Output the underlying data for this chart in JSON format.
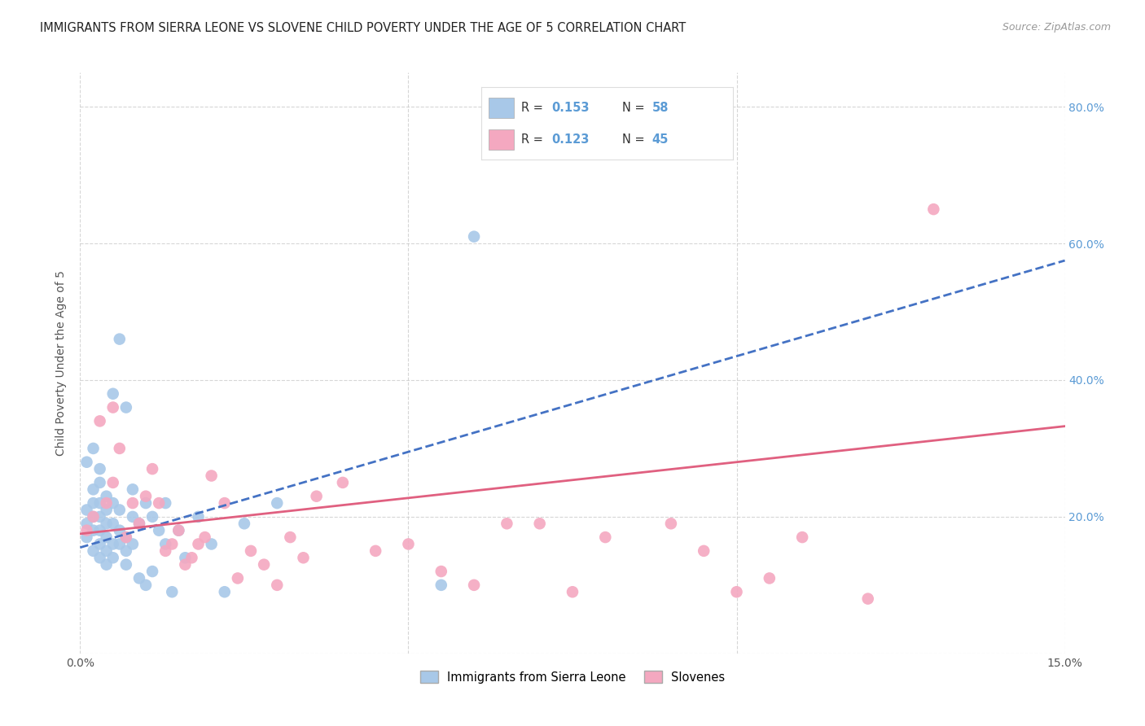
{
  "title": "IMMIGRANTS FROM SIERRA LEONE VS SLOVENE CHILD POVERTY UNDER THE AGE OF 5 CORRELATION CHART",
  "source": "Source: ZipAtlas.com",
  "ylabel": "Child Poverty Under the Age of 5",
  "xlim": [
    0.0,
    0.15
  ],
  "ylim": [
    0.0,
    0.85
  ],
  "legend_label1": "Immigrants from Sierra Leone",
  "legend_label2": "Slovenes",
  "R1": 0.153,
  "N1": 58,
  "R2": 0.123,
  "N2": 45,
  "color1": "#a8c8e8",
  "color2": "#f4a8c0",
  "trendline1_color": "#4472c4",
  "trendline2_color": "#e06080",
  "background_color": "#ffffff",
  "grid_color": "#cccccc",
  "right_tick_color": "#5b9bd5",
  "scatter1_x": [
    0.001,
    0.001,
    0.001,
    0.001,
    0.002,
    0.002,
    0.002,
    0.002,
    0.002,
    0.002,
    0.003,
    0.003,
    0.003,
    0.003,
    0.003,
    0.003,
    0.003,
    0.004,
    0.004,
    0.004,
    0.004,
    0.004,
    0.004,
    0.005,
    0.005,
    0.005,
    0.005,
    0.005,
    0.006,
    0.006,
    0.006,
    0.006,
    0.007,
    0.007,
    0.007,
    0.007,
    0.008,
    0.008,
    0.008,
    0.009,
    0.009,
    0.01,
    0.01,
    0.011,
    0.011,
    0.012,
    0.013,
    0.013,
    0.014,
    0.015,
    0.016,
    0.018,
    0.02,
    0.022,
    0.025,
    0.03,
    0.055,
    0.06
  ],
  "scatter1_y": [
    0.17,
    0.19,
    0.21,
    0.28,
    0.15,
    0.18,
    0.2,
    0.22,
    0.24,
    0.3,
    0.14,
    0.16,
    0.18,
    0.2,
    0.22,
    0.25,
    0.27,
    0.13,
    0.15,
    0.17,
    0.19,
    0.21,
    0.23,
    0.14,
    0.16,
    0.19,
    0.22,
    0.38,
    0.16,
    0.18,
    0.21,
    0.46,
    0.13,
    0.15,
    0.17,
    0.36,
    0.16,
    0.2,
    0.24,
    0.11,
    0.19,
    0.1,
    0.22,
    0.12,
    0.2,
    0.18,
    0.22,
    0.16,
    0.09,
    0.18,
    0.14,
    0.2,
    0.16,
    0.09,
    0.19,
    0.22,
    0.1,
    0.61
  ],
  "scatter2_x": [
    0.001,
    0.002,
    0.003,
    0.004,
    0.005,
    0.005,
    0.006,
    0.007,
    0.008,
    0.009,
    0.01,
    0.011,
    0.012,
    0.013,
    0.014,
    0.015,
    0.016,
    0.017,
    0.018,
    0.019,
    0.02,
    0.022,
    0.024,
    0.026,
    0.028,
    0.03,
    0.032,
    0.034,
    0.036,
    0.04,
    0.045,
    0.05,
    0.055,
    0.06,
    0.065,
    0.07,
    0.075,
    0.08,
    0.09,
    0.095,
    0.1,
    0.105,
    0.11,
    0.12,
    0.13
  ],
  "scatter2_y": [
    0.18,
    0.2,
    0.34,
    0.22,
    0.36,
    0.25,
    0.3,
    0.17,
    0.22,
    0.19,
    0.23,
    0.27,
    0.22,
    0.15,
    0.16,
    0.18,
    0.13,
    0.14,
    0.16,
    0.17,
    0.26,
    0.22,
    0.11,
    0.15,
    0.13,
    0.1,
    0.17,
    0.14,
    0.23,
    0.25,
    0.15,
    0.16,
    0.12,
    0.1,
    0.19,
    0.19,
    0.09,
    0.17,
    0.19,
    0.15,
    0.09,
    0.11,
    0.17,
    0.08,
    0.65
  ],
  "trendline1_slope": 2.8,
  "trendline1_intercept": 0.155,
  "trendline2_slope": 1.05,
  "trendline2_intercept": 0.175
}
